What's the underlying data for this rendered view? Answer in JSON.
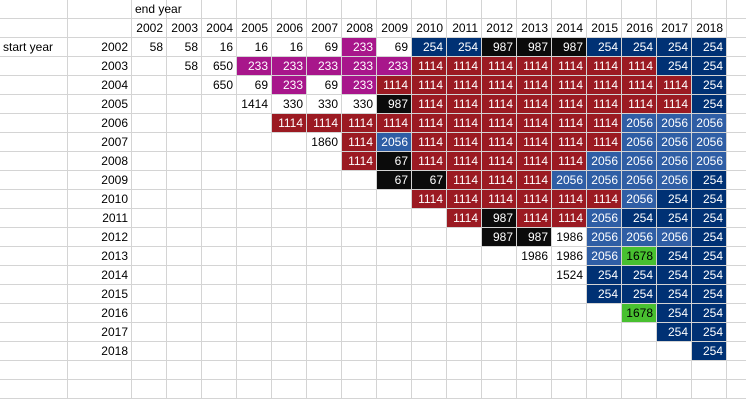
{
  "sheet": {
    "corner_label": "end year",
    "row_label": "start year",
    "years": [
      "2002",
      "2003",
      "2004",
      "2005",
      "2006",
      "2007",
      "2008",
      "2009",
      "2010",
      "2011",
      "2012",
      "2013",
      "2014",
      "2015",
      "2016",
      "2017",
      "2018"
    ],
    "rows": [
      {
        "start": "2002",
        "cells": [
          [
            "58",
            "w"
          ],
          [
            "58",
            "w"
          ],
          [
            "16",
            "w"
          ],
          [
            "16",
            "w"
          ],
          [
            "16",
            "w"
          ],
          [
            "69",
            "w"
          ],
          [
            "233",
            "m"
          ],
          [
            "69",
            "w"
          ],
          [
            "254",
            "b"
          ],
          [
            "254",
            "b"
          ],
          [
            "987",
            "k"
          ],
          [
            "987",
            "k"
          ],
          [
            "987",
            "k"
          ],
          [
            "254",
            "b"
          ],
          [
            "254",
            "b"
          ],
          [
            "254",
            "b"
          ],
          [
            "254",
            "b"
          ]
        ]
      },
      {
        "start": "2003",
        "cells": [
          null,
          [
            "58",
            "w"
          ],
          [
            "650",
            "w"
          ],
          [
            "233",
            "m"
          ],
          [
            "233",
            "m"
          ],
          [
            "233",
            "m"
          ],
          [
            "233",
            "m"
          ],
          [
            "233",
            "m"
          ],
          [
            "1114",
            "r"
          ],
          [
            "1114",
            "r"
          ],
          [
            "1114",
            "r"
          ],
          [
            "1114",
            "r"
          ],
          [
            "1114",
            "r"
          ],
          [
            "1114",
            "r"
          ],
          [
            "1114",
            "r"
          ],
          [
            "254",
            "b"
          ],
          [
            "254",
            "b"
          ]
        ]
      },
      {
        "start": "2004",
        "cells": [
          null,
          null,
          [
            "650",
            "w"
          ],
          [
            "69",
            "w"
          ],
          [
            "233",
            "m"
          ],
          [
            "69",
            "w"
          ],
          [
            "233",
            "m"
          ],
          [
            "1114",
            "r"
          ],
          [
            "1114",
            "r"
          ],
          [
            "1114",
            "r"
          ],
          [
            "1114",
            "r"
          ],
          [
            "1114",
            "r"
          ],
          [
            "1114",
            "r"
          ],
          [
            "1114",
            "r"
          ],
          [
            "1114",
            "r"
          ],
          [
            "1114",
            "r"
          ],
          [
            "254",
            "b"
          ]
        ]
      },
      {
        "start": "2005",
        "cells": [
          null,
          null,
          null,
          [
            "1414",
            "w"
          ],
          [
            "330",
            "w"
          ],
          [
            "330",
            "w"
          ],
          [
            "330",
            "w"
          ],
          [
            "987",
            "k"
          ],
          [
            "1114",
            "r"
          ],
          [
            "1114",
            "r"
          ],
          [
            "1114",
            "r"
          ],
          [
            "1114",
            "r"
          ],
          [
            "1114",
            "r"
          ],
          [
            "1114",
            "r"
          ],
          [
            "1114",
            "r"
          ],
          [
            "1114",
            "r"
          ],
          [
            "254",
            "b"
          ]
        ]
      },
      {
        "start": "2006",
        "cells": [
          null,
          null,
          null,
          null,
          [
            "1114",
            "r"
          ],
          [
            "1114",
            "r"
          ],
          [
            "1114",
            "r"
          ],
          [
            "1114",
            "r"
          ],
          [
            "1114",
            "r"
          ],
          [
            "1114",
            "r"
          ],
          [
            "1114",
            "r"
          ],
          [
            "1114",
            "r"
          ],
          [
            "1114",
            "r"
          ],
          [
            "1114",
            "r"
          ],
          [
            "2056",
            "lb"
          ],
          [
            "2056",
            "lb"
          ],
          [
            "2056",
            "lb"
          ]
        ]
      },
      {
        "start": "2007",
        "cells": [
          null,
          null,
          null,
          null,
          null,
          [
            "1860",
            "w"
          ],
          [
            "1114",
            "r"
          ],
          [
            "2056",
            "lb"
          ],
          [
            "1114",
            "r"
          ],
          [
            "1114",
            "r"
          ],
          [
            "1114",
            "r"
          ],
          [
            "1114",
            "r"
          ],
          [
            "1114",
            "r"
          ],
          [
            "1114",
            "r"
          ],
          [
            "2056",
            "lb"
          ],
          [
            "2056",
            "lb"
          ],
          [
            "2056",
            "lb"
          ]
        ]
      },
      {
        "start": "2008",
        "cells": [
          null,
          null,
          null,
          null,
          null,
          null,
          [
            "1114",
            "r"
          ],
          [
            "67",
            "k"
          ],
          [
            "1114",
            "r"
          ],
          [
            "1114",
            "r"
          ],
          [
            "1114",
            "r"
          ],
          [
            "1114",
            "r"
          ],
          [
            "1114",
            "r"
          ],
          [
            "2056",
            "lb"
          ],
          [
            "2056",
            "lb"
          ],
          [
            "2056",
            "lb"
          ],
          [
            "2056",
            "lb"
          ]
        ]
      },
      {
        "start": "2009",
        "cells": [
          null,
          null,
          null,
          null,
          null,
          null,
          null,
          [
            "67",
            "k"
          ],
          [
            "67",
            "k"
          ],
          [
            "1114",
            "r"
          ],
          [
            "1114",
            "r"
          ],
          [
            "1114",
            "r"
          ],
          [
            "2056",
            "lb"
          ],
          [
            "2056",
            "lb"
          ],
          [
            "2056",
            "lb"
          ],
          [
            "2056",
            "lb"
          ],
          [
            "254",
            "b"
          ]
        ]
      },
      {
        "start": "2010",
        "cells": [
          null,
          null,
          null,
          null,
          null,
          null,
          null,
          null,
          [
            "1114",
            "r"
          ],
          [
            "1114",
            "r"
          ],
          [
            "1114",
            "r"
          ],
          [
            "1114",
            "r"
          ],
          [
            "1114",
            "r"
          ],
          [
            "1114",
            "r"
          ],
          [
            "2056",
            "lb"
          ],
          [
            "254",
            "b"
          ],
          [
            "254",
            "b"
          ]
        ]
      },
      {
        "start": "2011",
        "cells": [
          null,
          null,
          null,
          null,
          null,
          null,
          null,
          null,
          null,
          [
            "1114",
            "r"
          ],
          [
            "987",
            "k"
          ],
          [
            "1114",
            "r"
          ],
          [
            "1114",
            "r"
          ],
          [
            "2056",
            "lb"
          ],
          [
            "254",
            "b"
          ],
          [
            "254",
            "b"
          ],
          [
            "254",
            "b"
          ]
        ]
      },
      {
        "start": "2012",
        "cells": [
          null,
          null,
          null,
          null,
          null,
          null,
          null,
          null,
          null,
          null,
          [
            "987",
            "k"
          ],
          [
            "987",
            "k"
          ],
          [
            "1986",
            "w"
          ],
          [
            "2056",
            "lb"
          ],
          [
            "2056",
            "lb"
          ],
          [
            "2056",
            "lb"
          ],
          [
            "254",
            "b"
          ]
        ]
      },
      {
        "start": "2013",
        "cells": [
          null,
          null,
          null,
          null,
          null,
          null,
          null,
          null,
          null,
          null,
          null,
          [
            "1986",
            "w"
          ],
          [
            "1986",
            "w"
          ],
          [
            "2056",
            "lb"
          ],
          [
            "1678",
            "g"
          ],
          [
            "254",
            "b"
          ],
          [
            "254",
            "b"
          ]
        ]
      },
      {
        "start": "2014",
        "cells": [
          null,
          null,
          null,
          null,
          null,
          null,
          null,
          null,
          null,
          null,
          null,
          null,
          [
            "1524",
            "w"
          ],
          [
            "254",
            "b"
          ],
          [
            "254",
            "b"
          ],
          [
            "254",
            "b"
          ],
          [
            "254",
            "b"
          ]
        ]
      },
      {
        "start": "2015",
        "cells": [
          null,
          null,
          null,
          null,
          null,
          null,
          null,
          null,
          null,
          null,
          null,
          null,
          null,
          [
            "254",
            "b"
          ],
          [
            "254",
            "b"
          ],
          [
            "254",
            "b"
          ],
          [
            "254",
            "b"
          ]
        ]
      },
      {
        "start": "2016",
        "cells": [
          null,
          null,
          null,
          null,
          null,
          null,
          null,
          null,
          null,
          null,
          null,
          null,
          null,
          null,
          [
            "1678",
            "g"
          ],
          [
            "254",
            "b"
          ],
          [
            "254",
            "b"
          ]
        ]
      },
      {
        "start": "2017",
        "cells": [
          null,
          null,
          null,
          null,
          null,
          null,
          null,
          null,
          null,
          null,
          null,
          null,
          null,
          null,
          null,
          [
            "254",
            "b"
          ],
          [
            "254",
            "b"
          ]
        ]
      },
      {
        "start": "2018",
        "cells": [
          null,
          null,
          null,
          null,
          null,
          null,
          null,
          null,
          null,
          null,
          null,
          null,
          null,
          null,
          null,
          null,
          [
            "254",
            "b"
          ]
        ]
      }
    ]
  },
  "colors": {
    "magenta": "#a8168b",
    "dark_red": "#9b1a22",
    "dark_blue": "#003174",
    "light_blue": "#2f5ea5",
    "black": "#0b0b0b",
    "green": "#48c030",
    "gridline": "#d4d4d4"
  }
}
